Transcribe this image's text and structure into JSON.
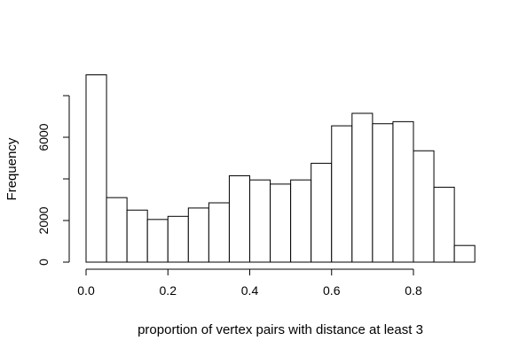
{
  "chart_data": {
    "type": "bar",
    "title": "",
    "xlabel": "proportion of vertex pairs with distance at least 3",
    "ylabel": "Frequency",
    "bin_width": 0.05,
    "bin_starts": [
      0.0,
      0.05,
      0.1,
      0.15,
      0.2,
      0.25,
      0.3,
      0.35,
      0.4,
      0.45,
      0.5,
      0.55,
      0.6,
      0.65,
      0.7,
      0.75,
      0.8,
      0.85,
      0.9
    ],
    "values": [
      9000,
      3100,
      2500,
      2050,
      2200,
      2600,
      2850,
      4150,
      3950,
      3750,
      3950,
      4750,
      6550,
      7150,
      6650,
      6750,
      5350,
      3600,
      800
    ],
    "xlim": [
      0.0,
      0.8
    ],
    "ylim": [
      0,
      8000
    ],
    "x_ticks": [
      0.0,
      0.2,
      0.4,
      0.6,
      0.8
    ],
    "x_tick_labels": [
      "0.0",
      "0.2",
      "0.4",
      "0.6",
      "0.8"
    ],
    "y_ticks": [
      0,
      2000,
      4000,
      6000,
      8000
    ],
    "y_tick_labels": [
      "0",
      "2000",
      "",
      "6000",
      ""
    ],
    "grid": false,
    "legend": "none",
    "bar_fill": "#ffffff",
    "bar_stroke": "#000000"
  }
}
